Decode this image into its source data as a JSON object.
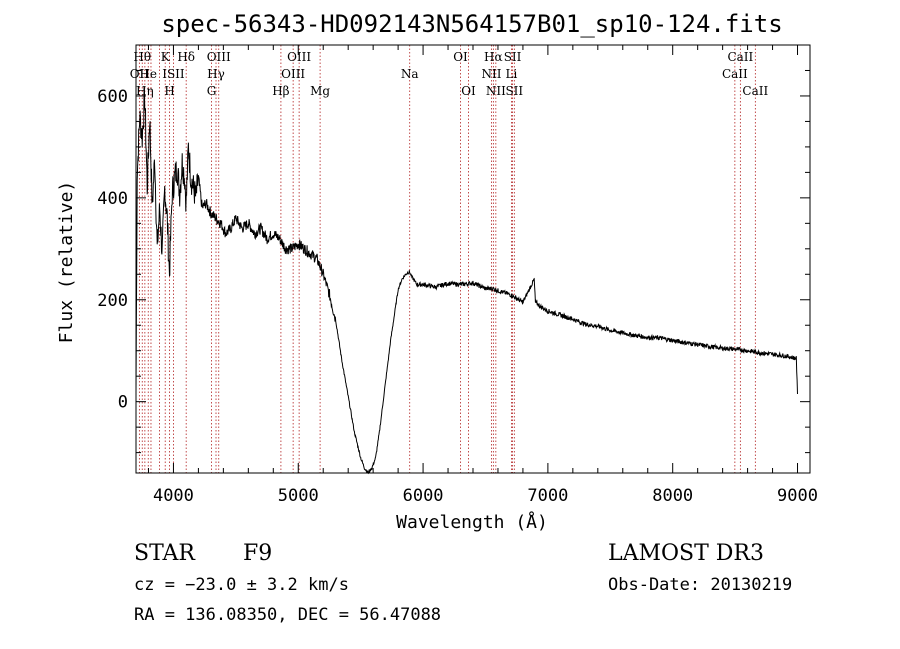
{
  "chart_data": {
    "type": "line",
    "title": "spec-56343-HD092143N564157B01_sp10-124.fits",
    "xlabel": "Wavelength (Å)",
    "ylabel": "Flux (relative)",
    "xlim": [
      3700,
      9100
    ],
    "ylim": [
      -140,
      700
    ],
    "xticks": [
      4000,
      5000,
      6000,
      7000,
      8000,
      9000
    ],
    "yticks": [
      0,
      200,
      400,
      600
    ],
    "series": [
      {
        "name": "spectrum",
        "x": [
          3700,
          3710,
          3730,
          3750,
          3770,
          3790,
          3810,
          3830,
          3850,
          3870,
          3890,
          3910,
          3930,
          3950,
          3968,
          3990,
          4010,
          4030,
          4050,
          4070,
          4090,
          4102,
          4120,
          4140,
          4160,
          4180,
          4200,
          4230,
          4260,
          4300,
          4340,
          4380,
          4420,
          4460,
          4500,
          4550,
          4600,
          4650,
          4700,
          4750,
          4800,
          4850,
          4900,
          4950,
          5000,
          5050,
          5100,
          5150,
          5200,
          5250,
          5300,
          5350,
          5400,
          5450,
          5500,
          5530,
          5560,
          5590,
          5620,
          5650,
          5680,
          5710,
          5740,
          5770,
          5800,
          5830,
          5860,
          5890,
          5910,
          5950,
          6000,
          6100,
          6200,
          6300,
          6400,
          6500,
          6563,
          6600,
          6700,
          6800,
          6890,
          6900,
          6950,
          7000,
          7100,
          7200,
          7300,
          7400,
          7500,
          7600,
          7700,
          7800,
          7900,
          8000,
          8100,
          8200,
          8300,
          8400,
          8500,
          8600,
          8700,
          8800,
          8900,
          8990,
          9000
        ],
        "y": [
          20,
          450,
          560,
          520,
          600,
          420,
          560,
          380,
          480,
          300,
          380,
          290,
          420,
          360,
          250,
          410,
          440,
          460,
          410,
          470,
          440,
          390,
          500,
          440,
          420,
          400,
          440,
          380,
          390,
          370,
          360,
          350,
          330,
          340,
          360,
          340,
          350,
          330,
          340,
          320,
          330,
          320,
          300,
          300,
          310,
          300,
          290,
          280,
          250,
          210,
          160,
          80,
          10,
          -60,
          -110,
          -130,
          -140,
          -130,
          -110,
          -60,
          0,
          60,
          120,
          170,
          220,
          240,
          250,
          255,
          245,
          230,
          230,
          225,
          232,
          230,
          233,
          222,
          222,
          218,
          210,
          195,
          240,
          195,
          185,
          178,
          170,
          162,
          152,
          148,
          140,
          135,
          130,
          126,
          125,
          120,
          116,
          112,
          108,
          105,
          103,
          100,
          96,
          93,
          90,
          85,
          15
        ]
      }
    ],
    "lines": [
      {
        "x": 3727,
        "label": "OII",
        "row": 2
      },
      {
        "x": 3750,
        "label": "Hθ",
        "row": 1
      },
      {
        "x": 3771,
        "label": "Hη",
        "row": 3
      },
      {
        "x": 3798,
        "label": "He",
        "row": 2
      },
      {
        "x": 3820,
        "label": "",
        "row": 0
      },
      {
        "x": 3889,
        "label": "",
        "row": 0
      },
      {
        "x": 3934,
        "label": "K",
        "row": 1
      },
      {
        "x": 3969,
        "label": "H",
        "row": 3
      },
      {
        "x": 4000,
        "label": "ISII",
        "row": 2
      },
      {
        "x": 4102,
        "label": "Hδ",
        "row": 1
      },
      {
        "x": 4305,
        "label": "G",
        "row": 3
      },
      {
        "x": 4341,
        "label": "Hγ",
        "row": 2
      },
      {
        "x": 4363,
        "label": "OIII",
        "row": 1
      },
      {
        "x": 4861,
        "label": "Hβ",
        "row": 3
      },
      {
        "x": 4959,
        "label": "OIII",
        "row": 2
      },
      {
        "x": 5007,
        "label": "OIII",
        "row": 1
      },
      {
        "x": 5175,
        "label": "Mg",
        "row": 3
      },
      {
        "x": 5893,
        "label": "Na",
        "row": 2
      },
      {
        "x": 6300,
        "label": "OI",
        "row": 1
      },
      {
        "x": 6364,
        "label": "OI",
        "row": 3
      },
      {
        "x": 6548,
        "label": "NII",
        "row": 2
      },
      {
        "x": 6563,
        "label": "Hα",
        "row": 1
      },
      {
        "x": 6583,
        "label": "NII",
        "row": 3
      },
      {
        "x": 6717,
        "label": "SII",
        "row": 1
      },
      {
        "x": 6731,
        "label": "SII",
        "row": 3
      },
      {
        "x": 6708,
        "label": "Li",
        "row": 2
      },
      {
        "x": 8498,
        "label": "CaII",
        "row": 2
      },
      {
        "x": 8542,
        "label": "CaII",
        "row": 1
      },
      {
        "x": 8662,
        "label": "CaII",
        "row": 3
      }
    ]
  },
  "info": {
    "object_type": "STAR",
    "subclass": "F9",
    "survey": "LAMOST DR3",
    "cz": "cz = −23.0 ± 3.2 km/s",
    "obs_date": "Obs-Date: 20130219",
    "coords": "RA = 136.08350, DEC =  56.47088"
  },
  "colors": {
    "line_marker": "#b22222",
    "spectrum": "#000000"
  }
}
